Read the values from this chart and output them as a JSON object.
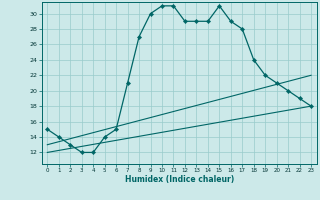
{
  "xlabel": "Humidex (Indice chaleur)",
  "bg_color": "#cce9e9",
  "line_color": "#006666",
  "grid_color": "#99cccc",
  "x_ticks": [
    0,
    1,
    2,
    3,
    4,
    5,
    6,
    7,
    8,
    9,
    10,
    11,
    12,
    13,
    14,
    15,
    16,
    17,
    18,
    19,
    20,
    21,
    22,
    23
  ],
  "y_ticks": [
    12,
    14,
    16,
    18,
    20,
    22,
    24,
    26,
    28,
    30
  ],
  "ylim": [
    10.5,
    31.5
  ],
  "xlim": [
    -0.5,
    23.5
  ],
  "series1_x": [
    0,
    1,
    2,
    3,
    4,
    5,
    6,
    7,
    8,
    9,
    10,
    11,
    12,
    13,
    14,
    15,
    16,
    17,
    18,
    19,
    20,
    21,
    22,
    23
  ],
  "series1_y": [
    15,
    14,
    13,
    12,
    12,
    14,
    15,
    21,
    27,
    30,
    31,
    31,
    29,
    29,
    29,
    31,
    29,
    28,
    24,
    22,
    21,
    20,
    19,
    18
  ],
  "series2_x": [
    0,
    23
  ],
  "series2_y": [
    13,
    22
  ],
  "series3_x": [
    0,
    23
  ],
  "series3_y": [
    12,
    18
  ]
}
